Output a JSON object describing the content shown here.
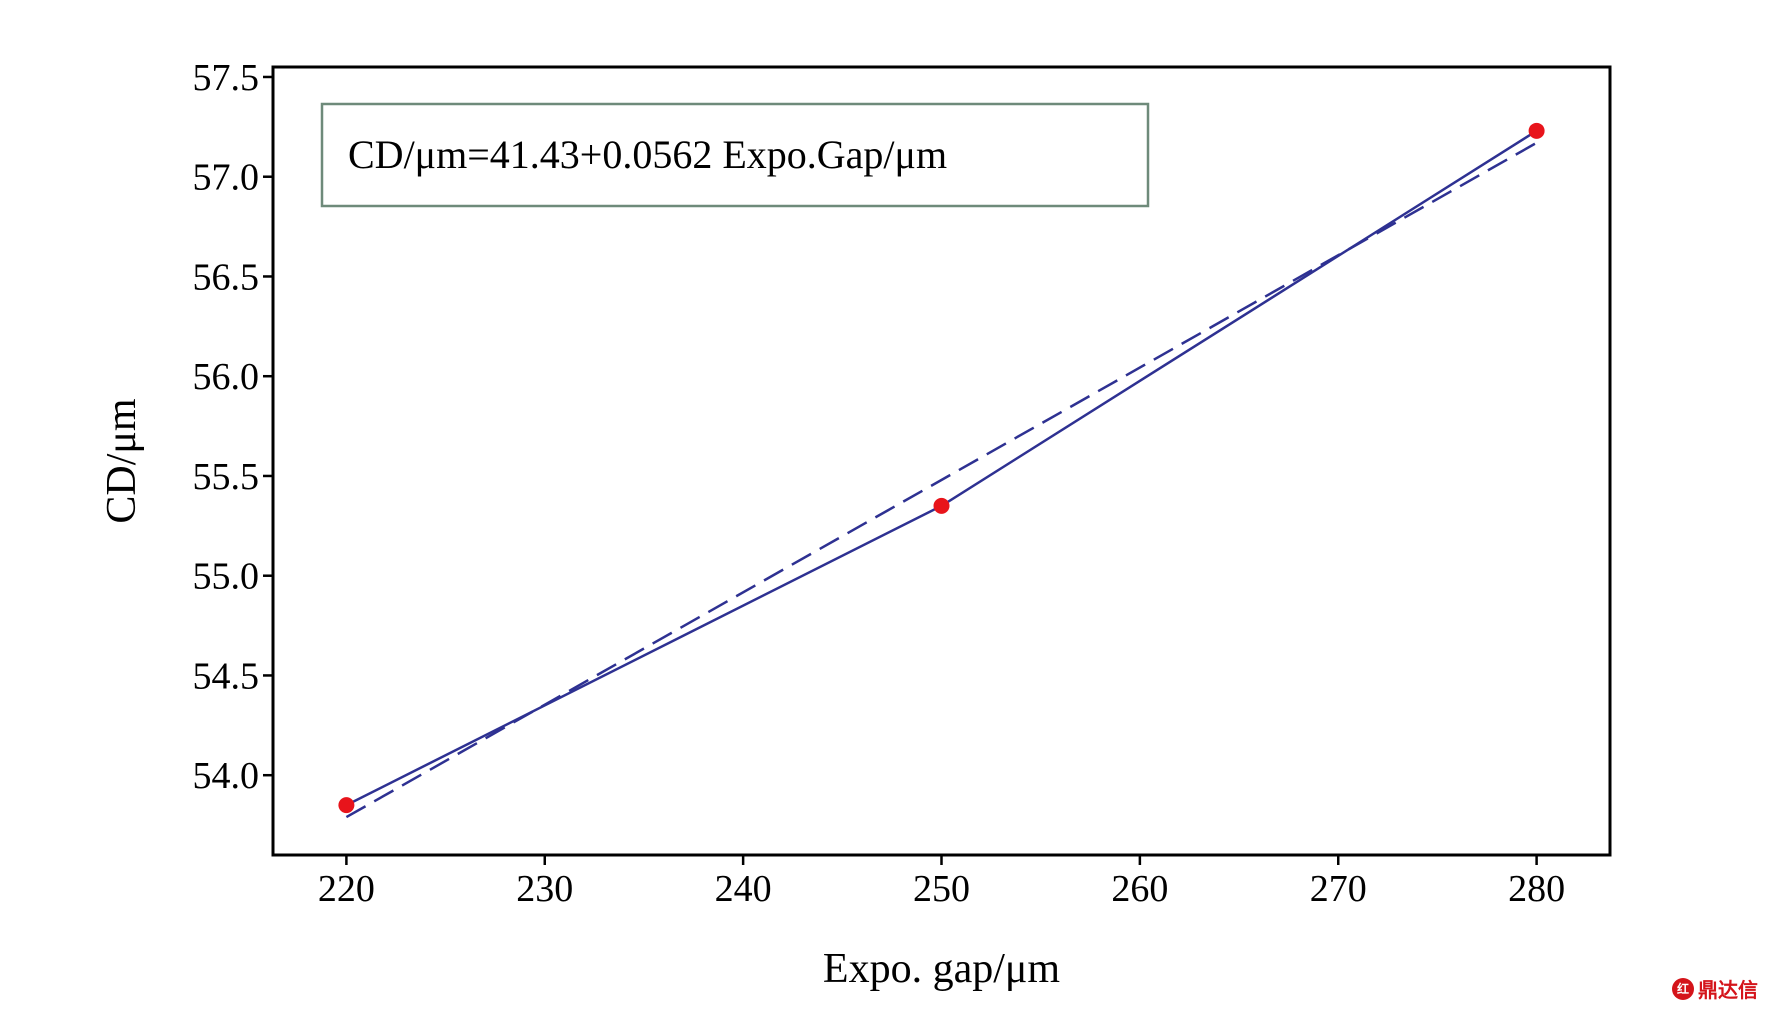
{
  "chart_data": {
    "type": "line",
    "xlabel": "Expo. gap/μm",
    "ylabel": "CD/μm",
    "xlim": [
      216.3,
      283.7
    ],
    "ylim": [
      53.6,
      57.55
    ],
    "xticks": [
      220,
      230,
      240,
      250,
      260,
      270,
      280
    ],
    "xtick_labels": [
      "220",
      "230",
      "240",
      "250",
      "260",
      "270",
      "280"
    ],
    "yticks": [
      54.0,
      54.5,
      55.0,
      55.5,
      56.0,
      56.5,
      57.0,
      57.5
    ],
    "ytick_labels": [
      "54.0",
      "54.5",
      "55.0",
      "55.5",
      "56.0",
      "56.5",
      "57.0",
      "57.5"
    ],
    "grid": false,
    "annotation": "CD/μm=41.43+0.0562 Expo.Gap/μm",
    "series": [
      {
        "style": "solid-line-with-markers",
        "x": [
          220,
          250,
          280
        ],
        "y": [
          53.85,
          55.35,
          57.23
        ]
      },
      {
        "style": "dashed-fit-line",
        "x": [
          220,
          280
        ],
        "y": [
          53.79,
          57.17
        ]
      }
    ],
    "colors": {
      "line": "#2e3192",
      "marker": "#e8141b",
      "annotation_border": "#6e8a7a"
    }
  },
  "watermark": {
    "text": "鼎达信",
    "logo": "红"
  }
}
